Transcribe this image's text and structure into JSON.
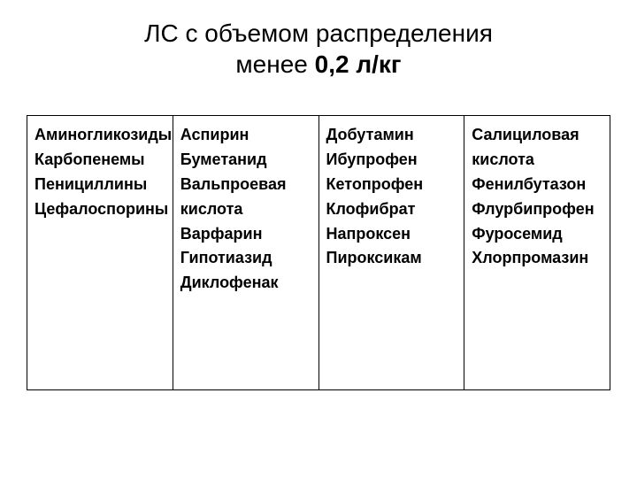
{
  "title_line1": "ЛС с объемом распределения",
  "title_line2_prefix": "менее ",
  "title_line2_bold": "0,2 л/кг",
  "table": {
    "columns": [
      {
        "items": [
          "Аминогликозиды",
          "Карбопенемы",
          "Пенициллины",
          "Цефалоспорины"
        ]
      },
      {
        "items": [
          "Аспирин",
          "Буметанид",
          "Вальпроевая кислота",
          "Варфарин",
          "Гипотиазид",
          "Диклофенак"
        ]
      },
      {
        "items": [
          "Добутамин",
          "Ибупрофен",
          "Кетопрофен",
          "Клофибрат",
          "Напроксен",
          "Пироксикам"
        ]
      },
      {
        "items": [
          "Салициловая кислота",
          "Фенилбутазон",
          "Флурбипрофен",
          "Фуросемид",
          "Хлорпромазин"
        ]
      }
    ],
    "border_color": "#000000",
    "background_color": "#ffffff",
    "font_size": 18,
    "font_weight": 700,
    "cell_padding": 8,
    "column_count": 4
  },
  "title_fontsize": 28,
  "title_color": "#000000"
}
